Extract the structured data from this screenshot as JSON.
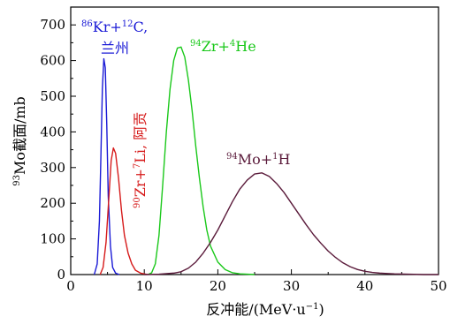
{
  "chart_data": {
    "type": "line",
    "xlabel": "反冲能/(MeV·u⁻¹)",
    "ylabel": "⁹³Mo截面/mb",
    "xlim": [
      0,
      50
    ],
    "ylim": [
      0,
      750
    ],
    "xticks": [
      "0",
      "10",
      "20",
      "30",
      "40",
      "50"
    ],
    "yticks": [
      "0",
      "100",
      "200",
      "300",
      "400",
      "500",
      "600",
      "700"
    ],
    "grid": false,
    "series": [
      {
        "name": "⁸⁶Kr+¹²C, 兰州",
        "color": "#1a1ad6",
        "x": [
          3.2,
          3.6,
          3.9,
          4.1,
          4.3,
          4.5,
          4.7,
          4.9,
          5.1,
          5.4,
          5.7,
          6.1,
          6.6
        ],
        "y": [
          0,
          30,
          150,
          330,
          520,
          605,
          580,
          420,
          220,
          80,
          20,
          4,
          0
        ]
      },
      {
        "name": "⁹⁰Zr+⁷Li, 阿贡",
        "color": "#d61a1a",
        "x": [
          4.0,
          4.4,
          4.8,
          5.2,
          5.5,
          5.8,
          6.1,
          6.5,
          6.9,
          7.3,
          7.8,
          8.3,
          8.8,
          9.5,
          10.5
        ],
        "y": [
          0,
          20,
          90,
          220,
          320,
          355,
          340,
          270,
          180,
          110,
          60,
          30,
          12,
          4,
          0
        ]
      },
      {
        "name": "⁹⁴Zr+⁴He",
        "color": "#1ac81a",
        "x": [
          10.5,
          11.0,
          11.5,
          12.0,
          12.5,
          13.0,
          13.5,
          14.0,
          14.5,
          15.0,
          15.5,
          16.0,
          16.5,
          17.0,
          17.5,
          18.0,
          18.5,
          19.0,
          20.0,
          21.0,
          22.0,
          23.0,
          24.0,
          25.0
        ],
        "y": [
          0,
          5,
          30,
          110,
          250,
          400,
          520,
          600,
          635,
          638,
          610,
          545,
          460,
          360,
          270,
          190,
          125,
          80,
          35,
          14,
          5,
          2,
          1,
          0
        ]
      },
      {
        "name": "⁹⁴Mo+¹H",
        "color": "#5a1a3a",
        "x": [
          10.0,
          12.0,
          14.0,
          15.0,
          16.0,
          17.0,
          18.0,
          19.0,
          20.0,
          21.0,
          22.0,
          23.0,
          24.0,
          25.0,
          26.0,
          27.0,
          28.0,
          29.0,
          30.0,
          31.0,
          32.0,
          33.0,
          34.0,
          35.0,
          36.0,
          37.0,
          38.0,
          39.0,
          40.0,
          41.0,
          42.0,
          43.0,
          44.0,
          46.0,
          48.0,
          50.0
        ],
        "y": [
          0,
          1,
          4,
          8,
          18,
          35,
          60,
          90,
          125,
          165,
          205,
          240,
          265,
          282,
          285,
          275,
          255,
          230,
          200,
          170,
          140,
          112,
          88,
          66,
          48,
          33,
          22,
          14,
          9,
          6,
          4,
          3,
          2,
          1,
          0,
          0
        ]
      }
    ]
  }
}
